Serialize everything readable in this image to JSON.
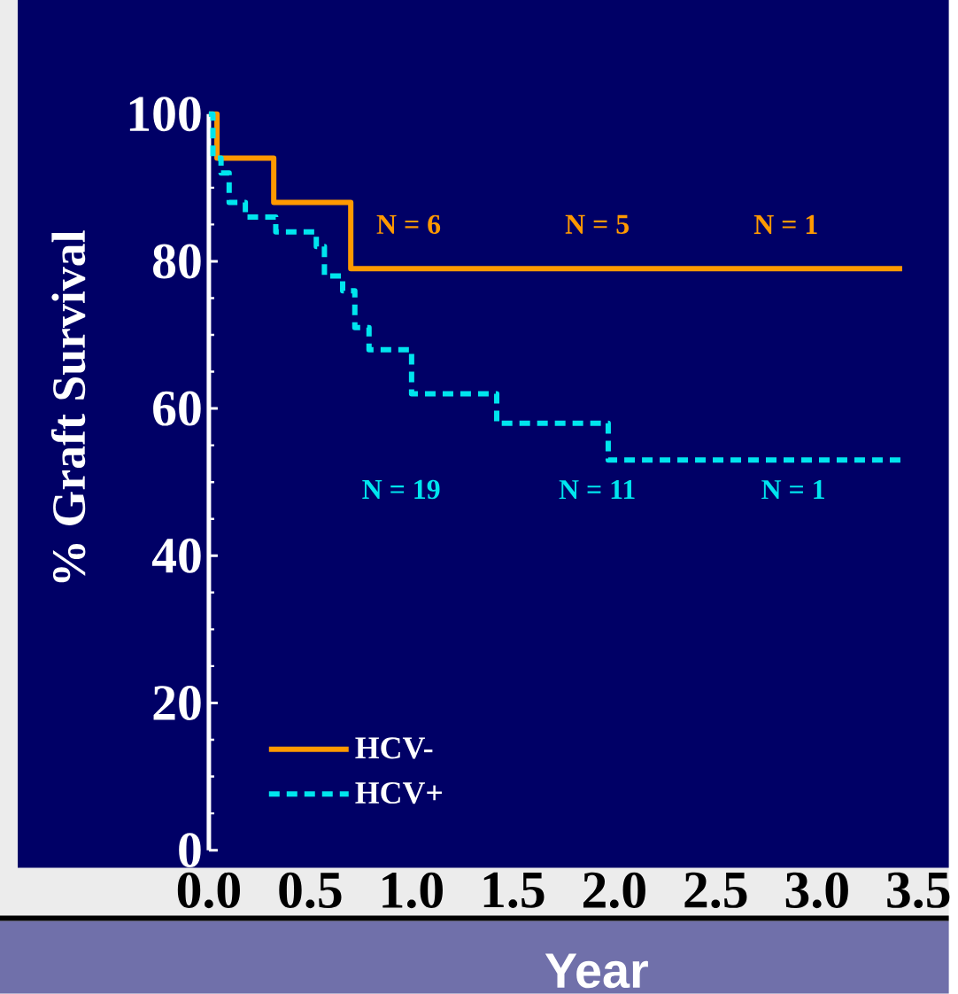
{
  "chart_data": {
    "type": "step",
    "xlabel": "Year",
    "ylabel": "% Graft Survival",
    "xlim": [
      0,
      3.65
    ],
    "ylim": [
      0,
      100
    ],
    "xticks": [
      {
        "value": 0,
        "label": "0.0"
      },
      0.5,
      {
        "value": 1,
        "label": "1.0"
      },
      1.5,
      {
        "value": 2,
        "label": "2.0"
      },
      2.5,
      {
        "value": 3,
        "label": "3.0"
      },
      3.5
    ],
    "yticks": [
      0,
      20,
      40,
      60,
      80,
      100
    ],
    "series": [
      {
        "name": "HCV-",
        "color": "#ff9900",
        "line_style": "solid",
        "x": [
          0,
          0.04,
          0.32,
          0.7,
          3.42
        ],
        "values": [
          100,
          94,
          88,
          79,
          79
        ]
      },
      {
        "name": "HCV+",
        "color": "#00e5ee",
        "line_style": "dashed",
        "x": [
          0,
          0.02,
          0.06,
          0.1,
          0.18,
          0.33,
          0.53,
          0.57,
          0.66,
          0.72,
          0.79,
          1.0,
          1.42,
          1.97,
          3.42
        ],
        "values": [
          100,
          94,
          92,
          88,
          86,
          84,
          82,
          78,
          76,
          71,
          68,
          62,
          58,
          53,
          53
        ]
      }
    ],
    "annotations": [
      "N = 6",
      "N = 5",
      "N = 1",
      "N = 19",
      "N = 11",
      "N = 1"
    ],
    "legend": "bottom left",
    "grid": false
  }
}
